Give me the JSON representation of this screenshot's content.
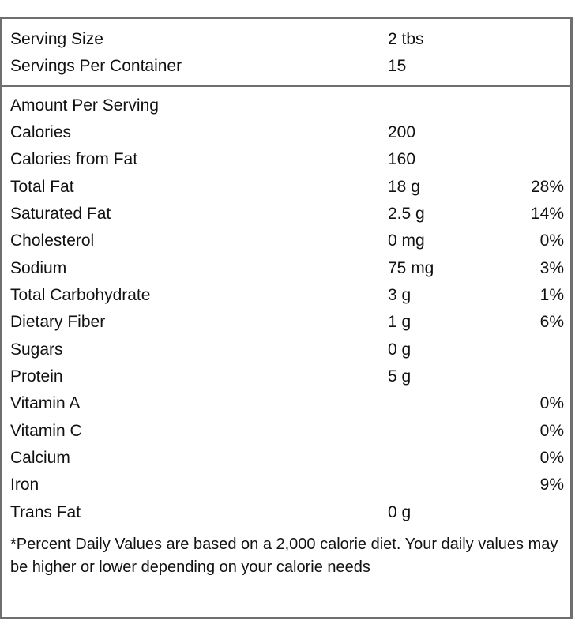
{
  "serving": {
    "size_label": "Serving Size",
    "size_value": "2 tbs",
    "per_container_label": "Servings Per Container",
    "per_container_value": "15"
  },
  "header": {
    "amount_per_serving": "Amount Per Serving"
  },
  "nutrients": [
    {
      "label": "Calories",
      "amount": "200",
      "dv": ""
    },
    {
      "label": "Calories from Fat",
      "amount": "160",
      "dv": ""
    },
    {
      "label": "Total Fat",
      "amount": "18 g",
      "dv": "28%"
    },
    {
      "label": "Saturated Fat",
      "amount": "2.5 g",
      "dv": "14%"
    },
    {
      "label": "Cholesterol",
      "amount": "0 mg",
      "dv": "0%"
    },
    {
      "label": "Sodium",
      "amount": "75 mg",
      "dv": "3%"
    },
    {
      "label": "Total Carbohydrate",
      "amount": "3 g",
      "dv": "1%"
    },
    {
      "label": "Dietary Fiber",
      "amount": "1 g",
      "dv": "6%"
    },
    {
      "label": "Sugars",
      "amount": "0 g",
      "dv": ""
    },
    {
      "label": "Protein",
      "amount": "5 g",
      "dv": ""
    },
    {
      "label": "Vitamin A",
      "amount": "",
      "dv": "0%"
    },
    {
      "label": "Vitamin C",
      "amount": "",
      "dv": "0%"
    },
    {
      "label": "Calcium",
      "amount": "",
      "dv": "0%"
    },
    {
      "label": "Iron",
      "amount": "",
      "dv": "9%"
    },
    {
      "label": "Trans Fat",
      "amount": "0 g",
      "dv": ""
    }
  ],
  "footnote": "*Percent Daily Values are based on a 2,000 calorie diet. Your daily values may be higher or lower depending on your calorie needs"
}
